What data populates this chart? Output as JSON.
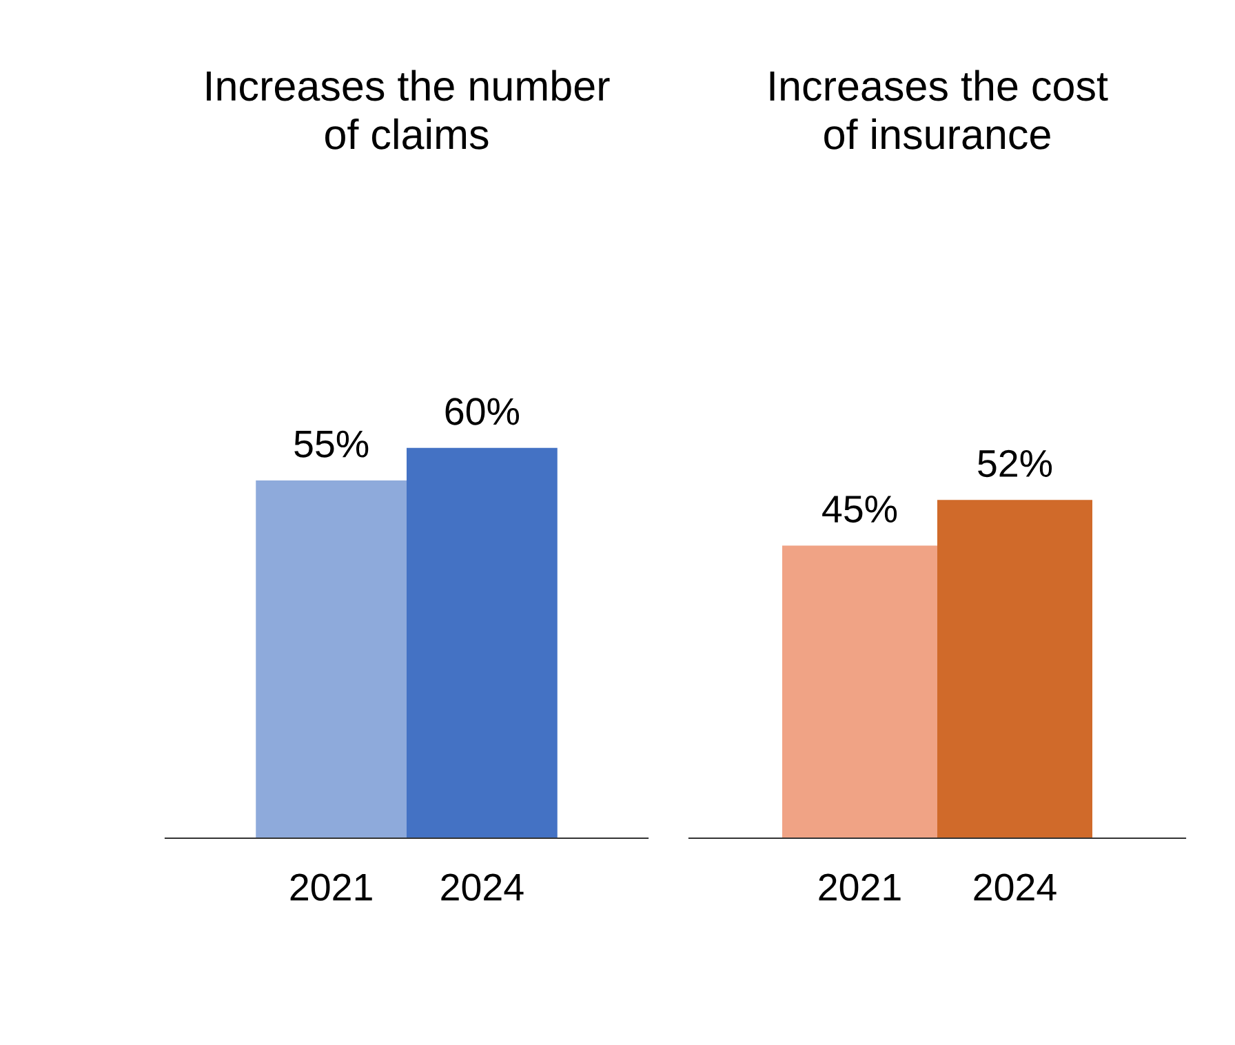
{
  "chart_data": [
    {
      "type": "bar",
      "title": "Increases the number\nof claims",
      "categories": [
        "2021",
        "2024"
      ],
      "values": [
        55,
        60
      ],
      "colors": [
        "#8eaadb",
        "#4472c4"
      ],
      "value_labels": [
        "55%",
        "60%"
      ],
      "tick_labels": "x",
      "grid": false,
      "legend": false
    },
    {
      "type": "bar",
      "title": "Increases the cost\nof insurance",
      "categories": [
        "2021",
        "2024"
      ],
      "values": [
        45,
        52
      ],
      "colors": [
        "#f0a385",
        "#d06a2a"
      ],
      "value_labels": [
        "45%",
        "52%"
      ],
      "tick_labels": "x",
      "grid": false,
      "legend": false
    }
  ]
}
